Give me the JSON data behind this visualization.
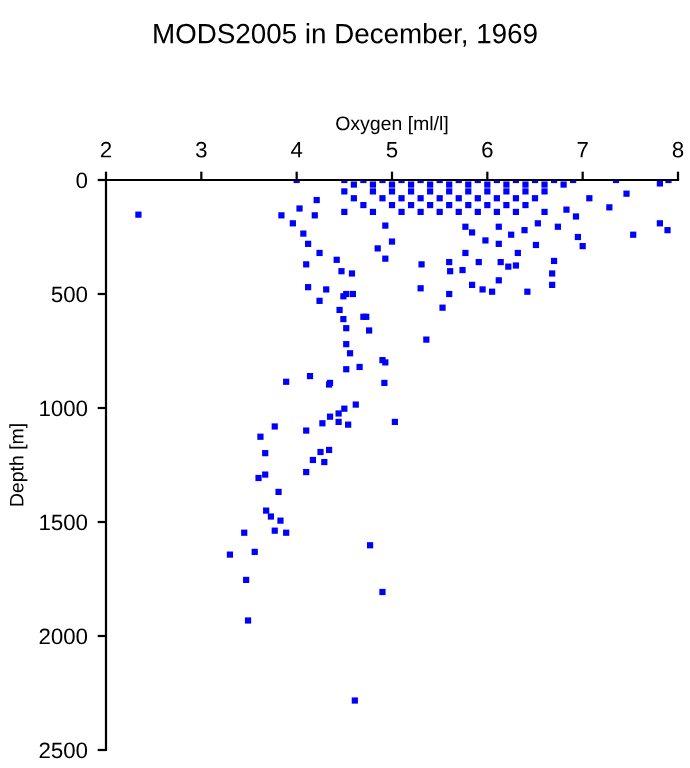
{
  "chart_data": {
    "type": "scatter",
    "title": "MODS2005 in December, 1969",
    "xlabel": "Oxygen [ml/l]",
    "ylabel": "Depth [m]",
    "xlim": [
      2,
      8
    ],
    "ylim": [
      2500,
      0
    ],
    "xticks": [
      2,
      3,
      4,
      5,
      6,
      7,
      8
    ],
    "yticks": [
      0,
      500,
      1000,
      1500,
      2000,
      2500
    ],
    "grid": false,
    "marker": "square",
    "series": [
      {
        "color": "#0000ff",
        "x": [
          2.34,
          4.0,
          7.35,
          7.81,
          7.9,
          7.46,
          7.28,
          7.07,
          7.81,
          7.89,
          7.53,
          7.0,
          6.83,
          6.93,
          6.95,
          3.84,
          3.96,
          4.03,
          4.19,
          4.21,
          4.07,
          4.12,
          4.1,
          4.24,
          4.12,
          4.24,
          4.31,
          4.42,
          4.47,
          4.58,
          4.52,
          4.49,
          4.59,
          4.45,
          4.49,
          4.52,
          4.7,
          4.73,
          4.76,
          4.52,
          4.56,
          4.52,
          4.66,
          4.9,
          4.93,
          3.89,
          4.14,
          4.35,
          4.92,
          4.93,
          4.85,
          5.0,
          4.93,
          5.31,
          5.6,
          5.61,
          5.74,
          5.77,
          5.91,
          5.3,
          5.6,
          5.53,
          5.36,
          5.84,
          5.95,
          6.05,
          6.12,
          6.14,
          6.22,
          6.3,
          6.42,
          6.7,
          6.68,
          6.68,
          6.51,
          6.32,
          6.12,
          5.98,
          5.84,
          5.77,
          6.25,
          6.12,
          6.39,
          6.53,
          6.74,
          4.34,
          4.62,
          4.5,
          4.35,
          4.44,
          4.44,
          4.54,
          4.27,
          5.03,
          4.1,
          3.77,
          3.62,
          3.67,
          4.34,
          4.25,
          4.17,
          4.29,
          4.1,
          3.67,
          3.6,
          3.81,
          3.68,
          3.73,
          3.83,
          3.77,
          3.89,
          3.45,
          3.56,
          3.3,
          4.77,
          3.47,
          4.9,
          3.49,
          4.61,
          4.5,
          4.7,
          4.9,
          5.1,
          5.3,
          5.5,
          5.7,
          5.9,
          6.1,
          6.3,
          6.5,
          6.7,
          6.9,
          4.6,
          4.8,
          5.0,
          5.2,
          5.4,
          5.6,
          5.8,
          6.0,
          6.2,
          6.4,
          6.6,
          6.8,
          4.5,
          4.8,
          5.0,
          5.2,
          5.4,
          5.6,
          5.8,
          6.0,
          6.2,
          6.4,
          6.6,
          4.6,
          4.9,
          5.1,
          5.3,
          5.5,
          5.7,
          5.9,
          6.1,
          6.3,
          6.5,
          4.7,
          5.0,
          5.2,
          5.4,
          5.6,
          5.8,
          6.0,
          6.2,
          6.4,
          4.5,
          4.8,
          5.1,
          5.3,
          5.5,
          5.7,
          5.9,
          6.1,
          6.3,
          6.6
        ],
        "values": [
          152,
          0,
          0,
          15,
          0,
          60,
          120,
          80,
          190,
          220,
          240,
          290,
          130,
          160,
          250,
          155,
          190,
          125,
          155,
          88,
          235,
          280,
          370,
          320,
          470,
          530,
          480,
          350,
          400,
          410,
          500,
          510,
          500,
          570,
          610,
          650,
          600,
          600,
          660,
          720,
          760,
          830,
          820,
          790,
          800,
          885,
          860,
          890,
          890,
          345,
          300,
          270,
          200,
          370,
          360,
          400,
          395,
          320,
          360,
          475,
          500,
          560,
          700,
          460,
          480,
          490,
          440,
          360,
          380,
          375,
          490,
          355,
          410,
          460,
          285,
          320,
          280,
          265,
          230,
          205,
          240,
          205,
          220,
          190,
          205,
          897,
          985,
          1003,
          1038,
          1024,
          1061,
          1073,
          1067,
          1061,
          1099,
          1081,
          1126,
          1198,
          1184,
          1193,
          1228,
          1237,
          1281,
          1292,
          1307,
          1368,
          1450,
          1476,
          1494,
          1538,
          1547,
          1547,
          1631,
          1643,
          1602,
          1754,
          1807,
          1932,
          2283,
          0,
          0,
          0,
          0,
          0,
          0,
          0,
          0,
          0,
          0,
          0,
          0,
          0,
          20,
          20,
          20,
          20,
          20,
          20,
          20,
          20,
          20,
          20,
          20,
          20,
          50,
          50,
          50,
          50,
          50,
          50,
          50,
          50,
          50,
          50,
          50,
          80,
          80,
          80,
          80,
          80,
          80,
          80,
          80,
          80,
          80,
          110,
          110,
          110,
          110,
          110,
          110,
          110,
          110,
          110,
          140,
          140,
          140,
          140,
          140,
          140,
          140,
          140,
          140,
          140
        ]
      }
    ]
  }
}
